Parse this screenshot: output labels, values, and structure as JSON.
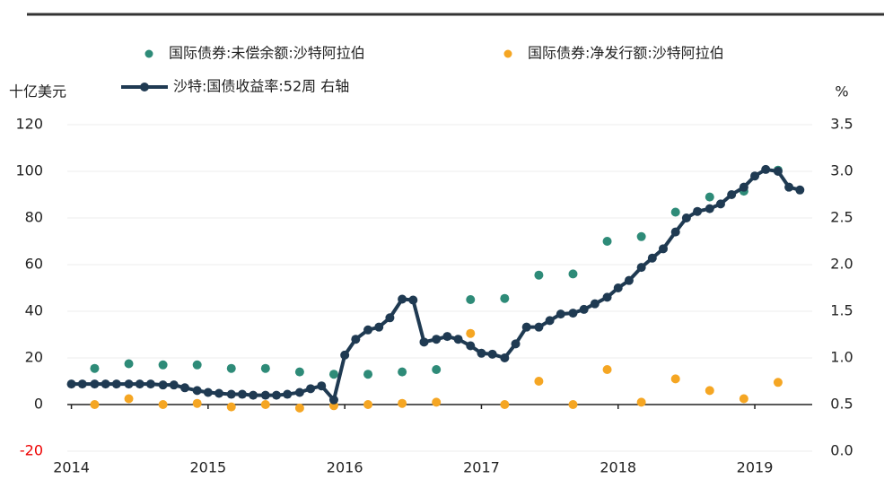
{
  "chart_data": {
    "type": "scatter_line",
    "y_axis_label": "十亿美元",
    "y2_axis_label": "%",
    "xlim": [
      2013.97,
      2019.42
    ],
    "xticks": [
      2014,
      2015,
      2016,
      2017,
      2018,
      2019
    ],
    "ylim": [
      -20,
      120
    ],
    "yticks": [
      -20,
      0,
      20,
      40,
      60,
      80,
      100,
      120
    ],
    "y2lim": [
      0,
      3.5
    ],
    "y2ticks": [
      {
        "value": 0,
        "label": "0.0"
      },
      0.5,
      {
        "value": 1,
        "label": "1.0"
      },
      1.5,
      {
        "value": 2,
        "label": "2.0"
      },
      2.5,
      {
        "value": 3,
        "label": "3.0"
      },
      3.5
    ],
    "grid": true,
    "series": [
      {
        "name": "国际债券:未偿余额:沙特阿拉伯",
        "kind": "scatter",
        "color": "#2e8b78",
        "x": [
          2014.17,
          2014.42,
          2014.67,
          2014.92,
          2015.17,
          2015.42,
          2015.67,
          2015.92,
          2016.17,
          2016.42,
          2016.67,
          2016.92,
          2017.17,
          2017.42,
          2017.67,
          2017.92,
          2018.17,
          2018.42,
          2018.67,
          2018.92,
          2019.17
        ],
        "values": [
          15.5,
          17.5,
          17,
          17,
          15.5,
          15.5,
          14,
          13,
          13,
          14,
          15,
          45,
          45.5,
          55.5,
          56,
          70,
          72,
          82.5,
          89,
          91.5,
          100.5
        ]
      },
      {
        "name": "国际债券:净发行额:沙特阿拉伯",
        "kind": "scatter",
        "color": "#f5a623",
        "x": [
          2014.17,
          2014.42,
          2014.67,
          2014.92,
          2015.17,
          2015.42,
          2015.67,
          2015.92,
          2016.17,
          2016.42,
          2016.67,
          2016.92,
          2017.17,
          2017.42,
          2017.67,
          2017.92,
          2018.17,
          2018.42,
          2018.67,
          2018.92,
          2019.17
        ],
        "values": [
          0,
          2.5,
          0,
          0.5,
          -1,
          0,
          -1.5,
          -0.5,
          0,
          0.5,
          1,
          30.5,
          0,
          10,
          0,
          15,
          1,
          11,
          6,
          2.5,
          9.5
        ]
      },
      {
        "name": "沙特:国债收益率:52周 右轴",
        "kind": "line",
        "axis": "y2",
        "color": "#1f3a52",
        "x": [
          2014,
          2014.08,
          2014.17,
          2014.25,
          2014.33,
          2014.42,
          2014.5,
          2014.58,
          2014.67,
          2014.75,
          2014.83,
          2014.92,
          2015,
          2015.08,
          2015.17,
          2015.25,
          2015.33,
          2015.42,
          2015.5,
          2015.58,
          2015.67,
          2015.75,
          2015.83,
          2015.92,
          2016,
          2016.08,
          2016.17,
          2016.25,
          2016.33,
          2016.42,
          2016.5,
          2016.58,
          2016.67,
          2016.75,
          2016.83,
          2016.92,
          2017,
          2017.08,
          2017.17,
          2017.25,
          2017.33,
          2017.42,
          2017.5,
          2017.58,
          2017.67,
          2017.75,
          2017.83,
          2017.92,
          2018,
          2018.08,
          2018.17,
          2018.25,
          2018.33,
          2018.42,
          2018.5,
          2018.58,
          2018.67,
          2018.75,
          2018.83,
          2018.92,
          2019,
          2019.08,
          2019.17,
          2019.25,
          2019.33
        ],
        "values": [
          0.72,
          0.72,
          0.72,
          0.72,
          0.72,
          0.72,
          0.72,
          0.72,
          0.71,
          0.71,
          0.68,
          0.65,
          0.63,
          0.62,
          0.61,
          0.61,
          0.6,
          0.6,
          0.6,
          0.61,
          0.63,
          0.67,
          0.7,
          0.55,
          1.03,
          1.2,
          1.3,
          1.33,
          1.43,
          1.63,
          1.62,
          1.17,
          1.2,
          1.23,
          1.2,
          1.13,
          1.05,
          1.04,
          1.0,
          1.15,
          1.33,
          1.33,
          1.4,
          1.47,
          1.48,
          1.52,
          1.58,
          1.65,
          1.75,
          1.83,
          1.97,
          2.07,
          2.17,
          2.35,
          2.5,
          2.57,
          2.6,
          2.65,
          2.75,
          2.83,
          2.95,
          3.02,
          3.0,
          2.83,
          2.8
        ]
      }
    ]
  }
}
